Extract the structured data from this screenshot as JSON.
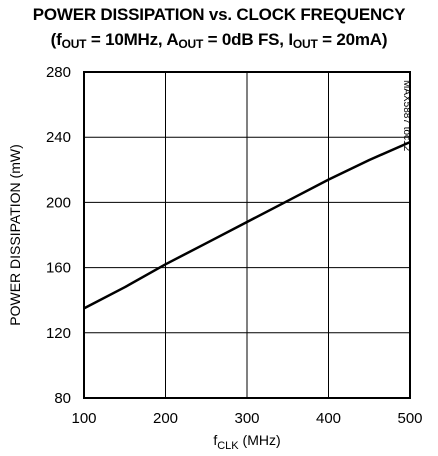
{
  "chart_data": {
    "type": "line",
    "title_line1": "POWER DISSIPATION vs. CLOCK FREQUENCY",
    "title_line2_parts": {
      "open": "(f",
      "fout_sub": "OUT",
      "fout_eq": " = 10MHz, A",
      "aout_sub": "OUT",
      "aout_eq": " = 0dB FS, I",
      "iout_sub": "OUT",
      "iout_eq": " = 20mA)"
    },
    "xlabel_main": "f",
    "xlabel_sub": "CLK",
    "xlabel_unit": " (MHz)",
    "ylabel": "POWER DISSIPATION (mW)",
    "watermark": "MAX5887 toc12",
    "xlim": [
      100,
      500
    ],
    "ylim": [
      80,
      280
    ],
    "x_ticks": [
      100,
      200,
      300,
      400,
      500
    ],
    "y_ticks": [
      80,
      120,
      160,
      200,
      240,
      280
    ],
    "grid": true,
    "series": [
      {
        "x": [
          100,
          150,
          200,
          250,
          300,
          350,
          400,
          450,
          500
        ],
        "y": [
          135,
          148,
          162,
          175,
          188,
          201,
          214,
          226,
          237
        ]
      }
    ]
  }
}
